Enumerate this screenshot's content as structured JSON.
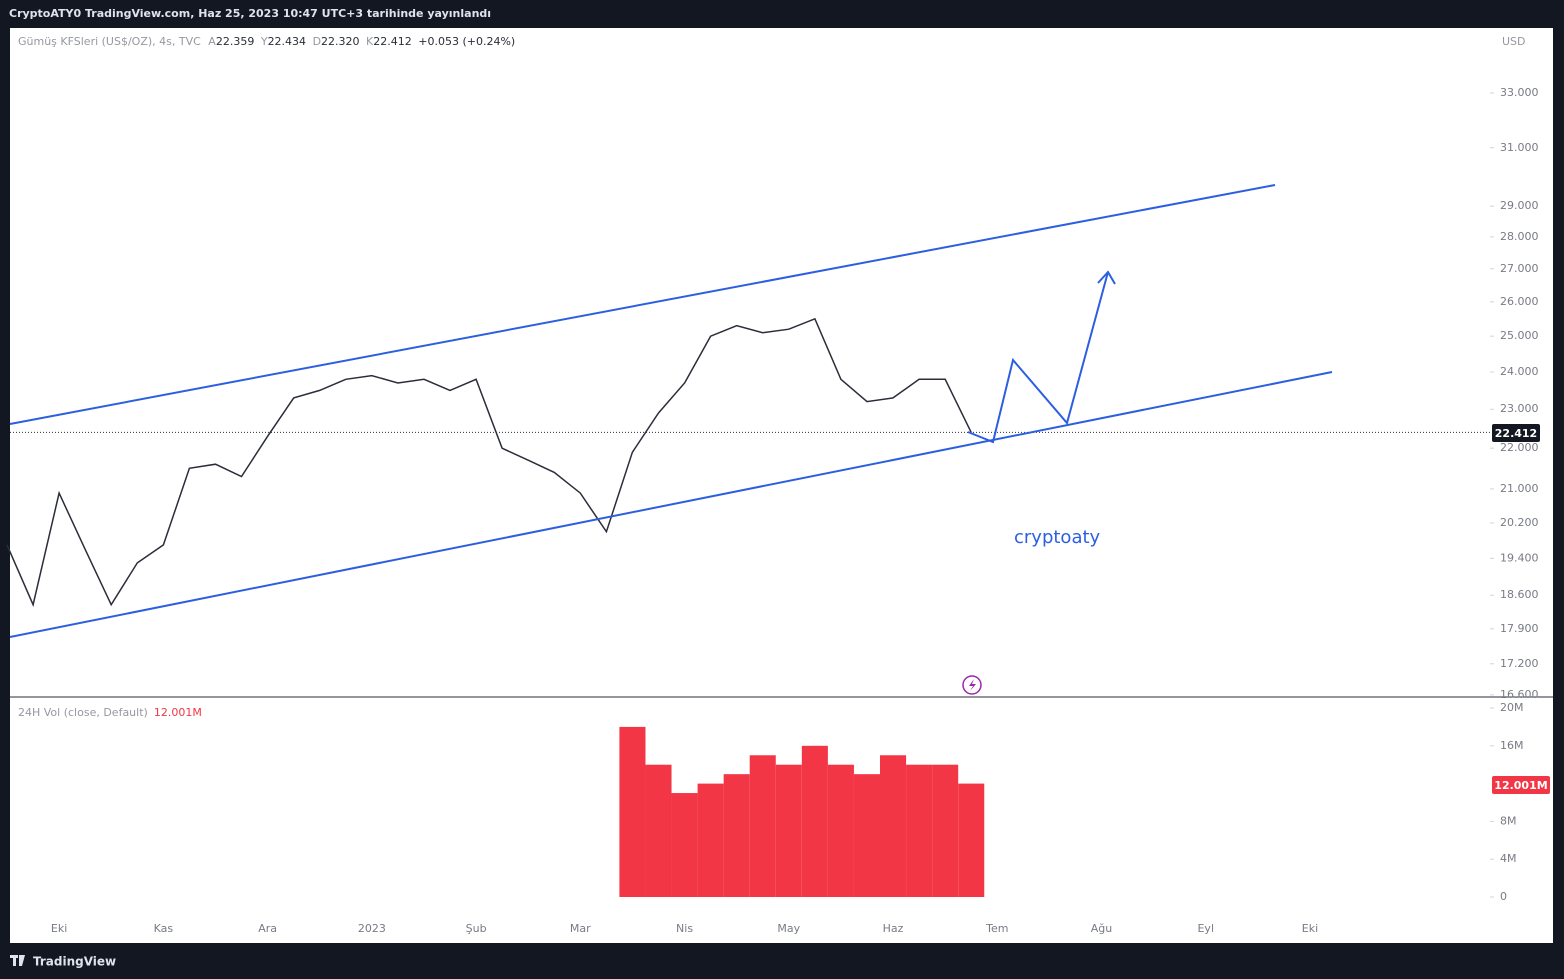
{
  "header": "CryptoATY0 TradingView.com, Haz 25, 2023 10:47 UTC+3 tarihinde yayınlandı",
  "legend": {
    "symbol": "Gümüş KFSleri (US$/OZ), 4s, TVC",
    "open_label": "A",
    "open": "22.359",
    "high_label": "Y",
    "high": "22.434",
    "low_label": "D",
    "low": "22.320",
    "close_label": "K",
    "close": "22.412",
    "change": "+0.053 (+0.24%)"
  },
  "currency": "USD",
  "price_badge": "22.412",
  "annotation": "cryptoaty",
  "vol_legend": {
    "name": "24H Vol (close, Default)",
    "value": "12.001M"
  },
  "vol_badge": "12.001M",
  "footer": "TradingView",
  "chart_data": [
    {
      "type": "line",
      "color": "#2a2e39",
      "log": true,
      "grid": false,
      "categories": [
        null,
        null,
        "Eki",
        null,
        null,
        null,
        "Kas",
        null,
        null,
        null,
        "Ara",
        null,
        null,
        null,
        "2023",
        null,
        null,
        null,
        "Şub",
        null,
        null,
        null,
        "Mar",
        null,
        null,
        null,
        "Nis",
        null,
        null,
        null,
        "May",
        null,
        null,
        null,
        "Haz",
        null,
        null,
        null,
        "Tem",
        null,
        null,
        null,
        "Ağu",
        null,
        null,
        null,
        "Eyl",
        null,
        null,
        null,
        "Eki",
        null,
        null,
        null,
        null,
        null,
        null
      ],
      "values": [
        19.7,
        18.4,
        20.9,
        19.6,
        18.4,
        19.3,
        19.7,
        21.5,
        21.6,
        21.3,
        22.3,
        23.3,
        23.5,
        23.8,
        23.9,
        23.7,
        23.8,
        23.5,
        23.8,
        22.0,
        21.7,
        21.4,
        20.9,
        20.0,
        21.9,
        22.9,
        23.7,
        25.0,
        25.3,
        25.1,
        25.2,
        25.5,
        23.8,
        23.2,
        23.3,
        23.8,
        23.8,
        22.4,
        null,
        null,
        null,
        null,
        null,
        null,
        null,
        null,
        null,
        null,
        null,
        null,
        null,
        null,
        null,
        null,
        null,
        null,
        null
      ],
      "ylim": [
        16.56,
        35.46
      ],
      "yticks": [
        {
          "value": 33,
          "label": "33.000"
        },
        {
          "value": 31,
          "label": "31.000"
        },
        {
          "value": 29,
          "label": "29.000"
        },
        {
          "value": 28,
          "label": "28.000"
        },
        {
          "value": 27,
          "label": "27.000"
        },
        {
          "value": 26,
          "label": "26.000"
        },
        {
          "value": 25,
          "label": "25.000"
        },
        {
          "value": 24,
          "label": "24.000"
        },
        {
          "value": 23,
          "label": "23.000"
        },
        {
          "value": 22,
          "label": "22.000"
        },
        {
          "value": 21,
          "label": "21.000"
        },
        {
          "value": 20.2,
          "label": "20.200"
        },
        {
          "value": 19.4,
          "label": "19.400"
        },
        {
          "value": 18.6,
          "label": "18.600"
        },
        {
          "value": 17.9,
          "label": "17.900"
        },
        {
          "value": 17.2,
          "label": "17.200"
        },
        {
          "value": 16.6,
          "label": "16.600"
        }
      ]
    },
    {
      "type": "bar",
      "color": "#f23645",
      "grid": false,
      "values": [
        null,
        null,
        null,
        null,
        null,
        null,
        null,
        null,
        null,
        null,
        null,
        null,
        null,
        null,
        null,
        null,
        null,
        null,
        null,
        null,
        null,
        null,
        null,
        null,
        18000000,
        14000000,
        11000000,
        12000000,
        13000000,
        15000000,
        14000000,
        16000000,
        14000000,
        13000000,
        15000000,
        14000000,
        14000000,
        12001000,
        null,
        null,
        null,
        null,
        null,
        null,
        null,
        null,
        null,
        null,
        null,
        null,
        null,
        null,
        null,
        null,
        null,
        null,
        null
      ],
      "ylim": [
        0,
        21060000
      ],
      "yticks": [
        {
          "value": 20000000,
          "label": "20M"
        },
        {
          "value": 16000000,
          "label": "16M"
        },
        {
          "value": 8000000,
          "label": "8M"
        },
        {
          "value": 4000000,
          "label": "4M"
        },
        0
      ]
    }
  ]
}
